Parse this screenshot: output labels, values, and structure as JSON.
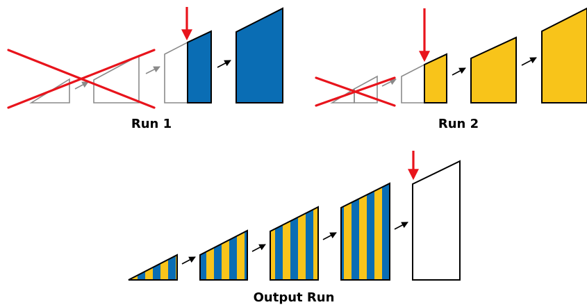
{
  "diagram": {
    "labels": {
      "run1": "Run 1",
      "run2": "Run 2",
      "output": "Output Run"
    },
    "colors": {
      "run1_fill": "#0a6db4",
      "run2_fill": "#f8c41a",
      "marker_arrow": "#e8141c",
      "discarded_outline": "#8a8a8a",
      "outline": "#000000"
    }
  }
}
